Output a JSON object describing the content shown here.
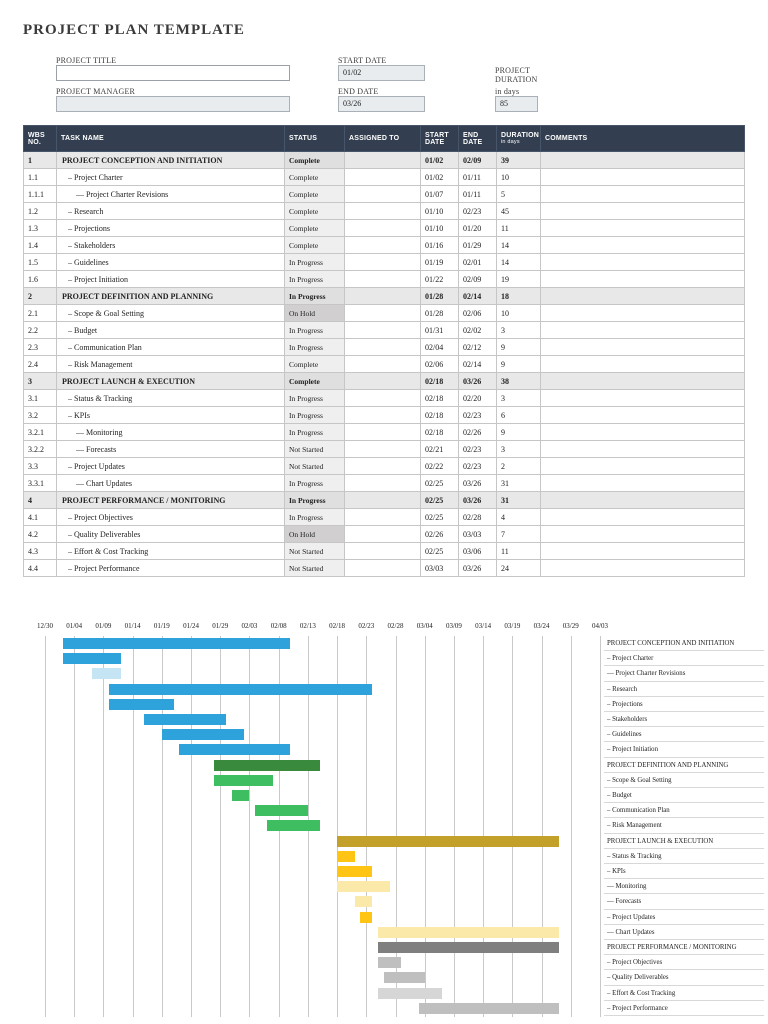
{
  "doc": {
    "title": "PROJECT PLAN TEMPLATE"
  },
  "form": {
    "project_title_label": "PROJECT TITLE",
    "project_title_value": "",
    "project_manager_label": "PROJECT MANAGER",
    "project_manager_value": "",
    "start_date_label": "START DATE",
    "start_date_value": "01/02",
    "end_date_label": "END DATE",
    "end_date_value": "03/26",
    "duration_label": "PROJECT\nDURATION",
    "duration_sublabel": "in days",
    "duration_value": "85"
  },
  "table": {
    "headers": {
      "wbs": "WBS\nNO.",
      "task": "TASK NAME",
      "status": "STATUS",
      "assigned": "ASSIGNED TO",
      "start": "START\nDATE",
      "end": "END\nDATE",
      "duration": "DURATION",
      "duration_sub": "in days",
      "comments": "COMMENTS"
    },
    "rows": [
      {
        "wbs": "1",
        "task": "PROJECT CONCEPTION AND INITIATION",
        "status": "Complete",
        "assigned": "",
        "start": "01/02",
        "end": "02/09",
        "duration": "39",
        "comments": "",
        "level": 1,
        "section": true
      },
      {
        "wbs": "1.1",
        "task": "– Project Charter",
        "status": "Complete",
        "assigned": "",
        "start": "01/02",
        "end": "01/11",
        "duration": "10",
        "comments": "",
        "level": 2,
        "section": false
      },
      {
        "wbs": "1.1.1",
        "task": "— Project Charter Revisions",
        "status": "Complete",
        "assigned": "",
        "start": "01/07",
        "end": "01/11",
        "duration": "5",
        "comments": "",
        "level": 3,
        "section": false
      },
      {
        "wbs": "1.2",
        "task": "– Research",
        "status": "Complete",
        "assigned": "",
        "start": "01/10",
        "end": "02/23",
        "duration": "45",
        "comments": "",
        "level": 2,
        "section": false
      },
      {
        "wbs": "1.3",
        "task": "– Projections",
        "status": "Complete",
        "assigned": "",
        "start": "01/10",
        "end": "01/20",
        "duration": "11",
        "comments": "",
        "level": 2,
        "section": false
      },
      {
        "wbs": "1.4",
        "task": "– Stakeholders",
        "status": "Complete",
        "assigned": "",
        "start": "01/16",
        "end": "01/29",
        "duration": "14",
        "comments": "",
        "level": 2,
        "section": false
      },
      {
        "wbs": "1.5",
        "task": "– Guidelines",
        "status": "In Progress",
        "assigned": "",
        "start": "01/19",
        "end": "02/01",
        "duration": "14",
        "comments": "",
        "level": 2,
        "section": false
      },
      {
        "wbs": "1.6",
        "task": "– Project Initiation",
        "status": "In Progress",
        "assigned": "",
        "start": "01/22",
        "end": "02/09",
        "duration": "19",
        "comments": "",
        "level": 2,
        "section": false
      },
      {
        "wbs": "2",
        "task": "PROJECT DEFINITION AND PLANNING",
        "status": "In Progress",
        "assigned": "",
        "start": "01/28",
        "end": "02/14",
        "duration": "18",
        "comments": "",
        "level": 1,
        "section": true
      },
      {
        "wbs": "2.1",
        "task": "– Scope & Goal Setting",
        "status": "On Hold",
        "assigned": "",
        "start": "01/28",
        "end": "02/06",
        "duration": "10",
        "comments": "",
        "level": 2,
        "section": false
      },
      {
        "wbs": "2.2",
        "task": "– Budget",
        "status": "In Progress",
        "assigned": "",
        "start": "01/31",
        "end": "02/02",
        "duration": "3",
        "comments": "",
        "level": 2,
        "section": false
      },
      {
        "wbs": "2.3",
        "task": "– Communication Plan",
        "status": "In Progress",
        "assigned": "",
        "start": "02/04",
        "end": "02/12",
        "duration": "9",
        "comments": "",
        "level": 2,
        "section": false
      },
      {
        "wbs": "2.4",
        "task": "– Risk Management",
        "status": "Complete",
        "assigned": "",
        "start": "02/06",
        "end": "02/14",
        "duration": "9",
        "comments": "",
        "level": 2,
        "section": false
      },
      {
        "wbs": "3",
        "task": "PROJECT LAUNCH & EXECUTION",
        "status": "Complete",
        "assigned": "",
        "start": "02/18",
        "end": "03/26",
        "duration": "38",
        "comments": "",
        "level": 1,
        "section": true
      },
      {
        "wbs": "3.1",
        "task": "– Status & Tracking",
        "status": "In Progress",
        "assigned": "",
        "start": "02/18",
        "end": "02/20",
        "duration": "3",
        "comments": "",
        "level": 2,
        "section": false
      },
      {
        "wbs": "3.2",
        "task": "– KPIs",
        "status": "In Progress",
        "assigned": "",
        "start": "02/18",
        "end": "02/23",
        "duration": "6",
        "comments": "",
        "level": 2,
        "section": false
      },
      {
        "wbs": "3.2.1",
        "task": "— Monitoring",
        "status": "In Progress",
        "assigned": "",
        "start": "02/18",
        "end": "02/26",
        "duration": "9",
        "comments": "",
        "level": 3,
        "section": false
      },
      {
        "wbs": "3.2.2",
        "task": "— Forecasts",
        "status": "Not Started",
        "assigned": "",
        "start": "02/21",
        "end": "02/23",
        "duration": "3",
        "comments": "",
        "level": 3,
        "section": false
      },
      {
        "wbs": "3.3",
        "task": "– Project Updates",
        "status": "Not Started",
        "assigned": "",
        "start": "02/22",
        "end": "02/23",
        "duration": "2",
        "comments": "",
        "level": 2,
        "section": false
      },
      {
        "wbs": "3.3.1",
        "task": "— Chart Updates",
        "status": "In Progress",
        "assigned": "",
        "start": "02/25",
        "end": "03/26",
        "duration": "31",
        "comments": "",
        "level": 3,
        "section": false
      },
      {
        "wbs": "4",
        "task": "PROJECT PERFORMANCE / MONITORING",
        "status": "In Progress",
        "assigned": "",
        "start": "02/25",
        "end": "03/26",
        "duration": "31",
        "comments": "",
        "level": 1,
        "section": true
      },
      {
        "wbs": "4.1",
        "task": "– Project Objectives",
        "status": "In Progress",
        "assigned": "",
        "start": "02/25",
        "end": "02/28",
        "duration": "4",
        "comments": "",
        "level": 2,
        "section": false
      },
      {
        "wbs": "4.2",
        "task": "– Quality Deliverables",
        "status": "On Hold",
        "assigned": "",
        "start": "02/26",
        "end": "03/03",
        "duration": "7",
        "comments": "",
        "level": 2,
        "section": false
      },
      {
        "wbs": "4.3",
        "task": "– Effort & Cost Tracking",
        "status": "Not Started",
        "assigned": "",
        "start": "02/25",
        "end": "03/06",
        "duration": "11",
        "comments": "",
        "level": 2,
        "section": false
      },
      {
        "wbs": "4.4",
        "task": "– Project Performance",
        "status": "Not Started",
        "assigned": "",
        "start": "03/03",
        "end": "03/26",
        "duration": "24",
        "comments": "",
        "level": 2,
        "section": false
      }
    ]
  },
  "chart_data": {
    "type": "gantt",
    "total_days": 95,
    "tick_interval": 5,
    "axis_ticks": [
      "12/30",
      "01/04",
      "01/09",
      "01/14",
      "01/19",
      "01/24",
      "01/29",
      "02/03",
      "02/08",
      "02/13",
      "02/18",
      "02/23",
      "02/28",
      "03/04",
      "03/09",
      "03/14",
      "03/19",
      "03/24",
      "03/29",
      "04/03"
    ],
    "palette": {
      "blue": "#2da2db",
      "lightblue": "#c5e5f5",
      "darkgreen": "#3a8a3e",
      "green": "#3fbd61",
      "darkgold": "#c2a02a",
      "yellow": "#ffc414",
      "lightyellow": "#fbe9a9",
      "darkgray": "#7f7f7f",
      "gray": "#bfbfbf",
      "lightgray": "#d6d6d6"
    },
    "tasks": [
      {
        "label": "PROJECT CONCEPTION AND INITIATION",
        "start": "01/02",
        "end": "02/09",
        "color": "blue",
        "section": true
      },
      {
        "label": "– Project Charter",
        "start": "01/02",
        "end": "01/11",
        "color": "blue",
        "section": false
      },
      {
        "label": "— Project Charter Revisions",
        "start": "01/07",
        "end": "01/11",
        "color": "lightblue",
        "section": false
      },
      {
        "label": "– Research",
        "start": "01/10",
        "end": "02/23",
        "color": "blue",
        "section": false
      },
      {
        "label": "– Projections",
        "start": "01/10",
        "end": "01/20",
        "color": "blue",
        "section": false
      },
      {
        "label": "– Stakeholders",
        "start": "01/16",
        "end": "01/29",
        "color": "blue",
        "section": false
      },
      {
        "label": "– Guidelines",
        "start": "01/19",
        "end": "02/01",
        "color": "blue",
        "section": false
      },
      {
        "label": "– Project Initiation",
        "start": "01/22",
        "end": "02/09",
        "color": "blue",
        "section": false
      },
      {
        "label": "PROJECT DEFINITION AND PLANNING",
        "start": "01/28",
        "end": "02/14",
        "color": "darkgreen",
        "section": true
      },
      {
        "label": "– Scope & Goal Setting",
        "start": "01/28",
        "end": "02/06",
        "color": "green",
        "section": false
      },
      {
        "label": "– Budget",
        "start": "01/31",
        "end": "02/02",
        "color": "green",
        "section": false
      },
      {
        "label": "– Communication Plan",
        "start": "02/04",
        "end": "02/12",
        "color": "green",
        "section": false
      },
      {
        "label": "– Risk Management",
        "start": "02/06",
        "end": "02/14",
        "color": "green",
        "section": false
      },
      {
        "label": "PROJECT LAUNCH & EXECUTION",
        "start": "02/18",
        "end": "03/26",
        "color": "darkgold",
        "section": true
      },
      {
        "label": "– Status & Tracking",
        "start": "02/18",
        "end": "02/20",
        "color": "yellow",
        "section": false
      },
      {
        "label": "– KPIs",
        "start": "02/18",
        "end": "02/23",
        "color": "yellow",
        "section": false
      },
      {
        "label": "— Monitoring",
        "start": "02/18",
        "end": "02/26",
        "color": "lightyellow",
        "section": false
      },
      {
        "label": "— Forecasts",
        "start": "02/21",
        "end": "02/23",
        "color": "lightyellow",
        "section": false
      },
      {
        "label": "– Project Updates",
        "start": "02/22",
        "end": "02/23",
        "color": "yellow",
        "section": false
      },
      {
        "label": "— Chart Updates",
        "start": "02/25",
        "end": "03/26",
        "color": "lightyellow",
        "section": false
      },
      {
        "label": "PROJECT PERFORMANCE / MONITORING",
        "start": "02/25",
        "end": "03/26",
        "color": "darkgray",
        "section": true
      },
      {
        "label": "– Project Objectives",
        "start": "02/25",
        "end": "02/28",
        "color": "gray",
        "section": false
      },
      {
        "label": "– Quality Deliverables",
        "start": "02/26",
        "end": "03/03",
        "color": "gray",
        "section": false
      },
      {
        "label": "– Effort & Cost Tracking",
        "start": "02/25",
        "end": "03/06",
        "color": "lightgray",
        "section": false
      },
      {
        "label": "– Project Performance",
        "start": "03/03",
        "end": "03/26",
        "color": "gray",
        "section": false
      }
    ]
  }
}
